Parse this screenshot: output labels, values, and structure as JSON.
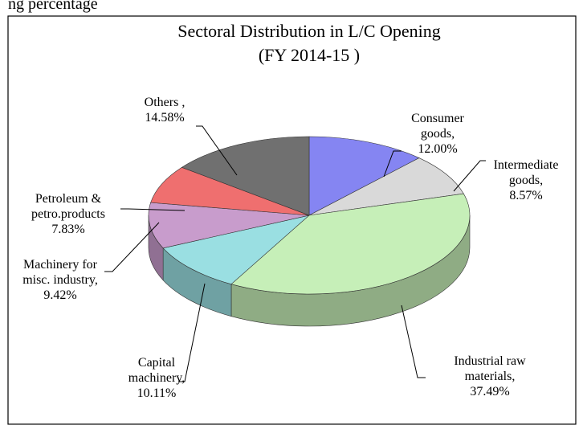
{
  "page_text": "ng percentage",
  "chart_data": {
    "type": "pie3d",
    "title": "Sectoral Distribution in L/C Opening",
    "subtitle": "(FY 2014-15 )",
    "categories": [
      "Consumer goods,",
      "Intermediate goods,",
      "Industrial raw materials,",
      "Capital machinery,",
      "Machinery for misc. industry,",
      "Petroleum & petro.products",
      "Others ,"
    ],
    "values": [
      12.0,
      8.57,
      37.49,
      10.11,
      9.42,
      7.83,
      14.58
    ],
    "value_labels": [
      "12.00%",
      "8.57%",
      "37.49%",
      "10.11%",
      "9.42%",
      "7.83%",
      "14.58%"
    ],
    "colors": [
      "#8585f2",
      "#d9d9d9",
      "#c6efb8",
      "#9adfe2",
      "#c89ccc",
      "#ef6f6f",
      "#707070"
    ]
  }
}
